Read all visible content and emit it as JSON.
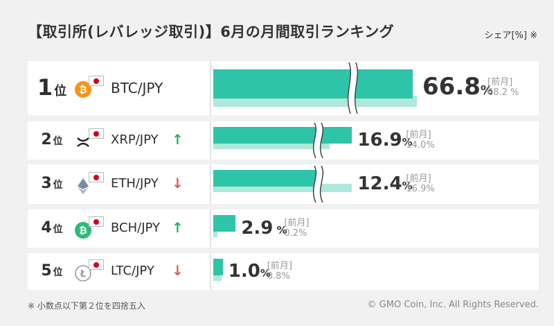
{
  "header": {
    "title": "【取引所(レバレッジ取引)】6月の月間取引ランキング",
    "unit": "シェア[%] ※"
  },
  "chart_data": {
    "type": "bar",
    "title": "【取引所(レバレッジ取引)】6月の月間取引ランキング",
    "ylabel": "シェア[%]",
    "categories": [
      "BTC/JPY",
      "XRP/JPY",
      "ETH/JPY",
      "BCH/JPY",
      "LTC/JPY"
    ],
    "series": [
      {
        "name": "",
        "values": [
          66.8,
          16.9,
          12.4,
          2.9,
          1.0
        ]
      },
      {
        "name": "前月",
        "values": [
          68.2,
          14.0,
          16.9,
          0.2,
          0.8
        ]
      }
    ],
    "rows": [
      {
        "rank": "1",
        "rank_suffix": "位",
        "pair": "BTC/JPY",
        "coin_icon": "bitcoin-icon",
        "coin_color": "#f7931a",
        "trend": "",
        "trend_name": "",
        "value": "66.8",
        "pct": "%",
        "prev_label": "[前月]",
        "prev_value": "68.2 %",
        "current": 66.8,
        "previous": 68.2,
        "broken": true
      },
      {
        "rank": "2",
        "rank_suffix": "位",
        "pair": "XRP/JPY",
        "coin_icon": "ripple-icon",
        "coin_color": "#222222",
        "trend": "↑",
        "trend_name": "up",
        "value": "16.9",
        "pct": "%",
        "prev_label": "[前月]",
        "prev_value": "14.0%",
        "current": 16.9,
        "previous": 14.0,
        "broken": true
      },
      {
        "rank": "3",
        "rank_suffix": "位",
        "pair": "ETH/JPY",
        "coin_icon": "ethereum-icon",
        "coin_color": "#7a8aa6",
        "trend": "↓",
        "trend_name": "down",
        "value": "12.4",
        "pct": "%",
        "prev_label": "[前月]",
        "prev_value": "16.9%",
        "current": 12.4,
        "previous": 16.9,
        "broken": true
      },
      {
        "rank": "4",
        "rank_suffix": "位",
        "pair": "BCH/JPY",
        "coin_icon": "bitcoin-cash-icon",
        "coin_color": "#2cba7a",
        "trend": "↑",
        "trend_name": "up",
        "value": "2.9",
        "pct": " %",
        "prev_label": "[前月]",
        "prev_value": "0.2%",
        "current": 2.9,
        "previous": 0.2,
        "broken": false
      },
      {
        "rank": "5",
        "rank_suffix": "位",
        "pair": "LTC/JPY",
        "coin_icon": "litecoin-icon",
        "coin_color": "#9a9a9a",
        "trend": "↓",
        "trend_name": "down",
        "value": "1.0",
        "pct": "%",
        "prev_label": "[前月]",
        "prev_value": "0.8%",
        "current": 1.0,
        "previous": 0.8,
        "broken": false
      }
    ]
  },
  "footer": {
    "footnote": "※ 小数点以下第２位を四捨五入",
    "copyright": "© GMO Coin, Inc. All Rights Reserved."
  },
  "colors": {
    "current_bar": "#2ec4a8",
    "previous_bar": "#aee8db",
    "up": "#1fb25a",
    "down": "#e05858"
  }
}
